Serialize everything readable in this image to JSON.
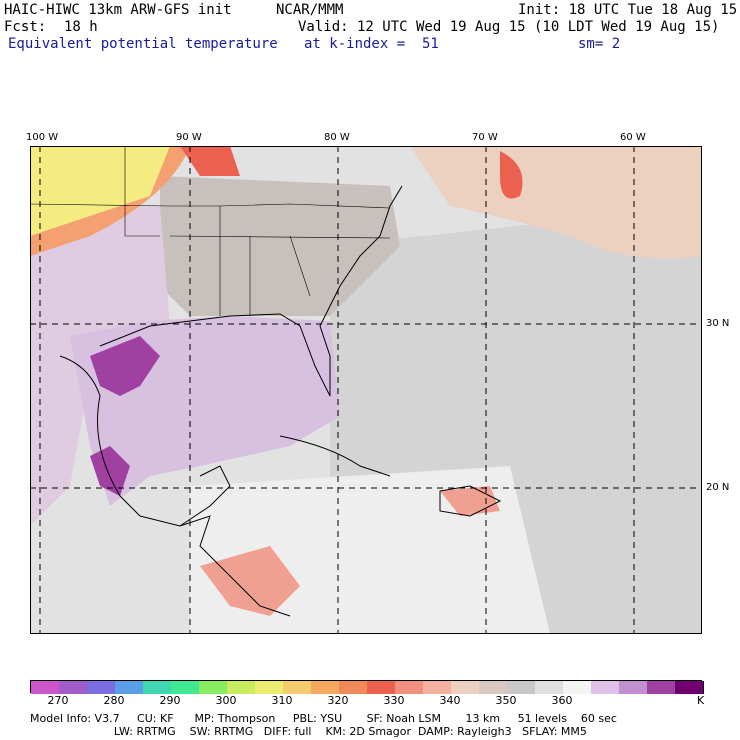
{
  "header": {
    "model_title": "HAIC-HIWC 13km ARW-GFS init",
    "org": "NCAR/MMM",
    "init": "Init: 18 UTC Tue 18 Aug 15",
    "fcst_label": "Fcst:",
    "fcst_value": "18 h",
    "valid": "Valid: 12 UTC Wed 19 Aug 15 (10 LDT Wed 19 Aug 15)",
    "field": "Equivalent potential temperature",
    "level": "at k-index =  51",
    "smooth": "sm= 2"
  },
  "map": {
    "lon_labels": [
      "100 W",
      "90 W",
      "80 W",
      "70 W",
      "60 W"
    ],
    "lat_labels": [
      "30 N",
      "20 N"
    ]
  },
  "colorbar": {
    "unit": "K",
    "tick_labels": [
      "270",
      "280",
      "290",
      "300",
      "310",
      "320",
      "330",
      "340",
      "350",
      "360"
    ],
    "colors": [
      "#cc55cc",
      "#a05cc8",
      "#7a6ee0",
      "#5a9ee8",
      "#40d8b0",
      "#40e890",
      "#88ec60",
      "#c8ec60",
      "#ecec70",
      "#f4cc70",
      "#f4a860",
      "#f08a5a",
      "#ec6050",
      "#f09080",
      "#f4b0a0",
      "#ecd0c0",
      "#d8c8c0",
      "#c8c8c8",
      "#e0e0e0",
      "#f4f4f4",
      "#e0c0e8",
      "#c090d0",
      "#a040a0",
      "#700070"
    ]
  },
  "footer": {
    "line1": "Model Info: V3.7     CU: KF      MP: Thompson     PBL: YSU       SF: Noah LSM       13 km     51 levels    60 sec",
    "line2": "                        LW: RRTMG    SW: RRTMG   DIFF: full    KM: 2D Smagor  DAMP: Rayleigh3   SFLAY: MM5"
  }
}
